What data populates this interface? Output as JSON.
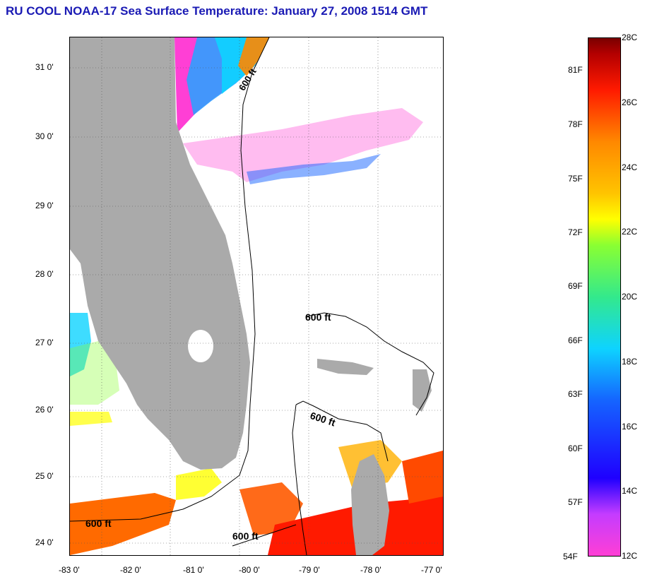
{
  "title": "RU COOL  NOAA-17  Sea Surface Temperature:  January 27, 2008 1514 GMT",
  "axes": {
    "lat_labels": [
      "31 0'",
      "30 0'",
      "29 0'",
      "28 0'",
      "27 0'",
      "26 0'",
      "25 0'",
      "24 0'"
    ],
    "lon_labels": [
      "-83 0'",
      "-82 0'",
      "-81 0'",
      "-80 0'",
      "-79 0'",
      "-78 0'",
      "-77 0'"
    ]
  },
  "contours": {
    "label": "600 ft",
    "labels": [
      "600 ft",
      "600 ft",
      "600 ft",
      "600 ft",
      "600 ft"
    ]
  },
  "colorbar": {
    "fahrenheit": [
      "81F",
      "78F",
      "75F",
      "72F",
      "69F",
      "66F",
      "63F",
      "60F",
      "57F",
      "54F"
    ],
    "celsius": [
      "28C",
      "26C",
      "24C",
      "22C",
      "20C",
      "18C",
      "16C",
      "14C",
      "12C"
    ],
    "colors": [
      "#ff3fd5",
      "#c53cff",
      "#1f00ff",
      "#1564ff",
      "#0ed3ff",
      "#33e98c",
      "#8aff32",
      "#ffff00",
      "#ffc400",
      "#ff8800",
      "#ff1a00",
      "#b30000",
      "#7a0000"
    ]
  },
  "colors": {
    "land": "#aaaaaa",
    "title": "#1a1ab4",
    "grid": "#555555"
  }
}
